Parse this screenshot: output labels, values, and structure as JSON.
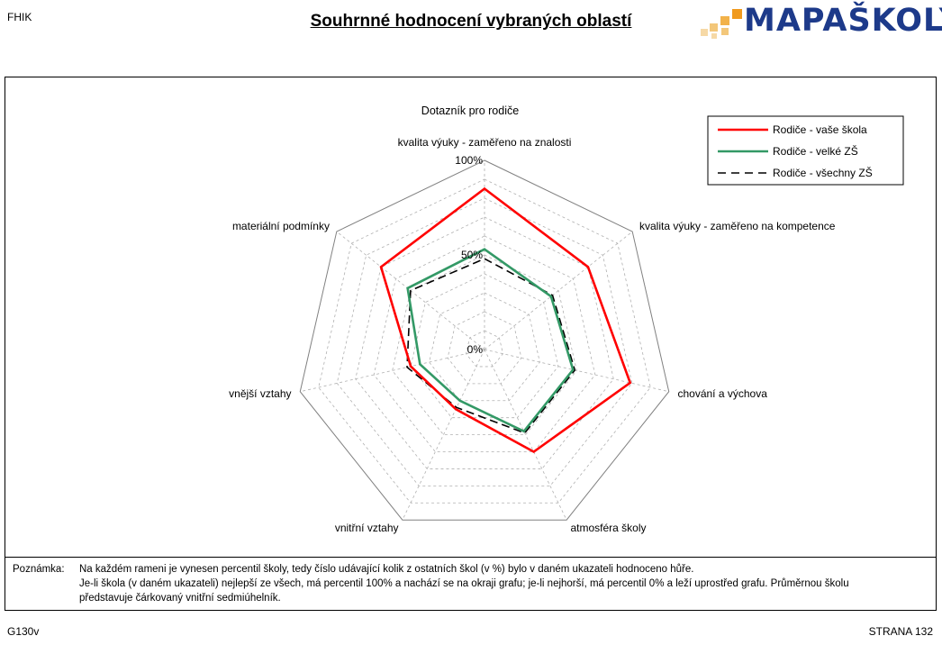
{
  "header": {
    "code": "FHIK",
    "title": "Souhrnné hodnocení vybraných oblastí",
    "logo_text": "MAPAŠKOLY"
  },
  "chart_data": {
    "type": "radar",
    "title": "Dotazník pro rodiče",
    "axes": [
      "kvalita výuky - zaměřeno na znalosti",
      "kvalita výuky - zaměřeno na kompetence",
      "chování a výchova",
      "atmosféra školy",
      "vnitřní vztahy",
      "vnější vztahy",
      "materiální podmínky"
    ],
    "range": [
      0,
      100
    ],
    "tick_labels": [
      "100%",
      "50%",
      "0%"
    ],
    "legend_position": "top-right",
    "series": [
      {
        "name": "Rodiče - vaše škola",
        "color": "#ff0000",
        "dash": "solid",
        "values": [
          85,
          70,
          79,
          60,
          35,
          40,
          70
        ]
      },
      {
        "name": "Rodiče - velké ZŠ",
        "color": "#339966",
        "dash": "solid",
        "values": [
          53,
          45,
          48,
          48,
          30,
          35,
          52
        ]
      },
      {
        "name": "Rodiče - všechny ZŠ",
        "color": "#000000",
        "dash": "dashed",
        "values": [
          48,
          46,
          49,
          49,
          34,
          42,
          50
        ]
      }
    ]
  },
  "note": {
    "label": "Poznámka:",
    "lines": [
      "Na každém rameni je vynesen percentil školy, tedy číslo udávající kolik z ostatních škol (v %) bylo v daném ukazateli hodnoceno hůře.",
      "Je-li škola (v daném ukazateli) nejlepší ze všech, má percentil 100% a nachází se na okraji grafu; je-li nejhorší, má percentil 0% a leží uprostřed grafu. Průměrnou školu",
      "představuje čárkovaný vnitřní sedmiúhelník."
    ]
  },
  "footer": {
    "code": "G130v",
    "page": "STRANA  132"
  }
}
